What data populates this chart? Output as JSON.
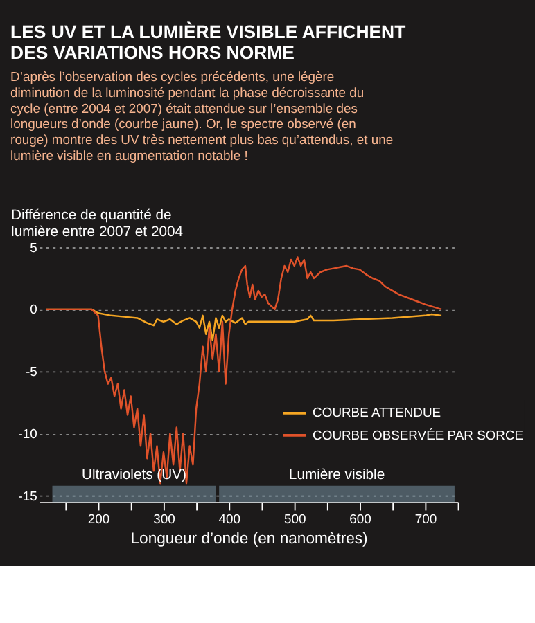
{
  "chart_data": {
    "type": "line",
    "title": "LES UV ET LA LUMIÈRE VISIBLE AFFICHENT DES VARIATIONS HORS NORME",
    "subtitle": "D’après l’observation des cycles précédents, une légère diminution de la luminosité pendant la phase décroissante du cycle (entre 2004 et 2007) était attendue sur l’ensemble des longueurs d’onde (courbe jaune). Or, le spectre observé (en rouge) montre des UV très nettement plus bas qu’attendus, et une lumière visible en augmentation notable !",
    "ylabel": "Différence de quantité de lumière entre 2007 et 2004",
    "xlabel": "Longueur d’onde (en nanomètres)",
    "series": [
      {
        "name": "COURBE ATTENDUE",
        "color": "#f5a623",
        "x": [
          120,
          190,
          200,
          220,
          240,
          260,
          275,
          285,
          290,
          300,
          310,
          320,
          330,
          340,
          350,
          355,
          360,
          365,
          370,
          375,
          380,
          385,
          390,
          395,
          400,
          410,
          420,
          425,
          430,
          450,
          500,
          520,
          525,
          530,
          560,
          600,
          650,
          700,
          710,
          725
        ],
        "values": [
          0,
          0,
          -0.3,
          -0.5,
          -0.6,
          -0.7,
          -1.1,
          -1.3,
          -0.8,
          -1,
          -0.8,
          -1.2,
          -0.9,
          -0.7,
          -1,
          -1.5,
          -0.5,
          -2,
          -1,
          -2.5,
          -0.7,
          -1.5,
          -0.5,
          -1,
          -0.8,
          -1.1,
          -0.7,
          -1.2,
          -1,
          -1,
          -1,
          -0.8,
          -0.5,
          -0.9,
          -0.9,
          -0.8,
          -0.7,
          -0.5,
          -0.4,
          -0.5
        ]
      },
      {
        "name": "COURBE OBSERVÉE PAR SORCE",
        "color": "#e0522a",
        "x": [
          120,
          190,
          200,
          205,
          210,
          215,
          220,
          225,
          230,
          235,
          240,
          245,
          250,
          255,
          260,
          265,
          270,
          275,
          280,
          285,
          290,
          295,
          300,
          305,
          310,
          315,
          320,
          325,
          330,
          335,
          340,
          345,
          350,
          355,
          360,
          365,
          370,
          375,
          380,
          385,
          390,
          395,
          400,
          405,
          410,
          415,
          420,
          425,
          428,
          432,
          436,
          440,
          445,
          450,
          455,
          460,
          470,
          475,
          480,
          485,
          490,
          495,
          500,
          505,
          510,
          515,
          520,
          525,
          530,
          540,
          550,
          560,
          570,
          580,
          590,
          600,
          610,
          620,
          630,
          640,
          650,
          660,
          680,
          700,
          725
        ],
        "values": [
          0,
          0,
          -0.5,
          -3,
          -5,
          -6,
          -5.5,
          -7,
          -6,
          -8,
          -6.5,
          -8.5,
          -7,
          -9.5,
          -8,
          -11,
          -8.5,
          -12,
          -10,
          -13,
          -11,
          -14,
          -11.5,
          -13.5,
          -10,
          -12.5,
          -9.5,
          -13,
          -10,
          -14,
          -11,
          -12.5,
          -8,
          -6,
          -3,
          -5,
          -1.5,
          -4,
          -2,
          -5,
          -1,
          -6,
          -2,
          0,
          1.5,
          2.5,
          3.2,
          3.5,
          2,
          1,
          2,
          0.8,
          1.5,
          1,
          1.2,
          0.5,
          0,
          0.8,
          2.5,
          3.5,
          3,
          4,
          3.5,
          4.2,
          3.5,
          4,
          2.5,
          3,
          2.5,
          3,
          3.2,
          3.3,
          3.4,
          3.5,
          3.3,
          3.2,
          2.8,
          2.5,
          2.3,
          1.8,
          1.5,
          1.2,
          0.8,
          0.4,
          0
        ]
      }
    ],
    "xlim": [
      110,
      750
    ],
    "xticks": [
      {
        "value": 150,
        "label": null
      },
      200,
      {
        "value": 250,
        "label": null
      },
      300,
      {
        "value": 350,
        "label": null
      },
      400,
      {
        "value": 450,
        "label": null
      },
      500,
      {
        "value": 550,
        "label": null
      },
      600,
      {
        "value": 650,
        "label": null
      },
      700,
      {
        "value": 750,
        "label": null
      }
    ],
    "ylim": [
      -15.5,
      5
    ],
    "yticks": [
      -15,
      -10,
      -5,
      0,
      5
    ],
    "grid": "y",
    "legend": "bottom right",
    "bands": [
      {
        "axis": "x",
        "from": 130,
        "to": 380,
        "label": "Ultraviolets (UV)",
        "color": "#a8d8f0"
      },
      {
        "axis": "x",
        "from": 385,
        "to": 745,
        "label": "Lumière visible",
        "color": "#a8d8f0"
      }
    ]
  }
}
